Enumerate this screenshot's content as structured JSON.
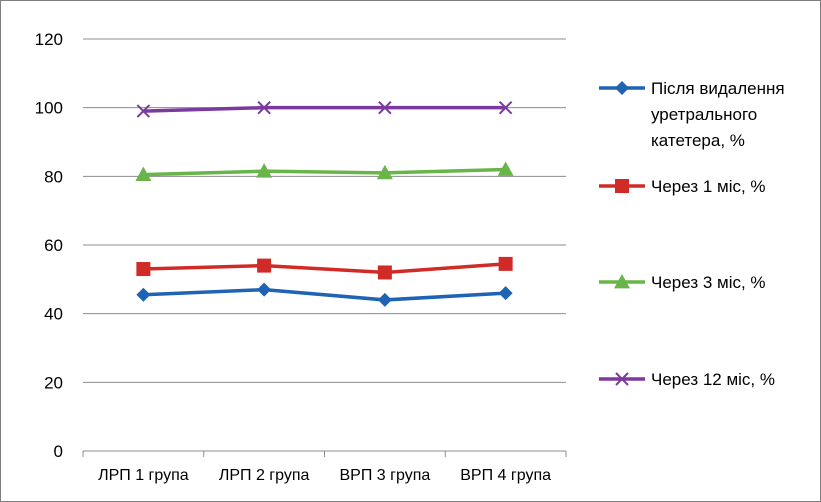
{
  "chart_data": {
    "type": "line",
    "categories": [
      "ЛРП 1 група",
      "ЛРП 2 група",
      "ВРП 3 група",
      "ВРП 4 група"
    ],
    "series": [
      {
        "name": "Після видалення уретрального катетера, %",
        "legend_lines": [
          "Після видалення",
          "уретрального",
          "катетера, %"
        ],
        "values": [
          45.5,
          47,
          44,
          46
        ],
        "color": "#1f63b4",
        "marker": "diamond"
      },
      {
        "name": "Через 1 міс, %",
        "legend_lines": [
          "Через 1 міс, %"
        ],
        "values": [
          53,
          54,
          52,
          54.5
        ],
        "color": "#d12b27",
        "marker": "square"
      },
      {
        "name": "Через 3 міс, %",
        "legend_lines": [
          "Через 3 міс, %"
        ],
        "values": [
          80.5,
          81.5,
          81,
          82
        ],
        "color": "#69b54a",
        "marker": "triangle"
      },
      {
        "name": "Через 12 міс, %",
        "legend_lines": [
          "Через 12 міс, %"
        ],
        "values": [
          99,
          100,
          100,
          100
        ],
        "color": "#7b3a9e",
        "marker": "x"
      }
    ],
    "y_ticks": [
      "0",
      "20",
      "40",
      "60",
      "80",
      "100",
      "120"
    ],
    "ylim": [
      0,
      120
    ],
    "grid": true,
    "legend_position": "right"
  }
}
